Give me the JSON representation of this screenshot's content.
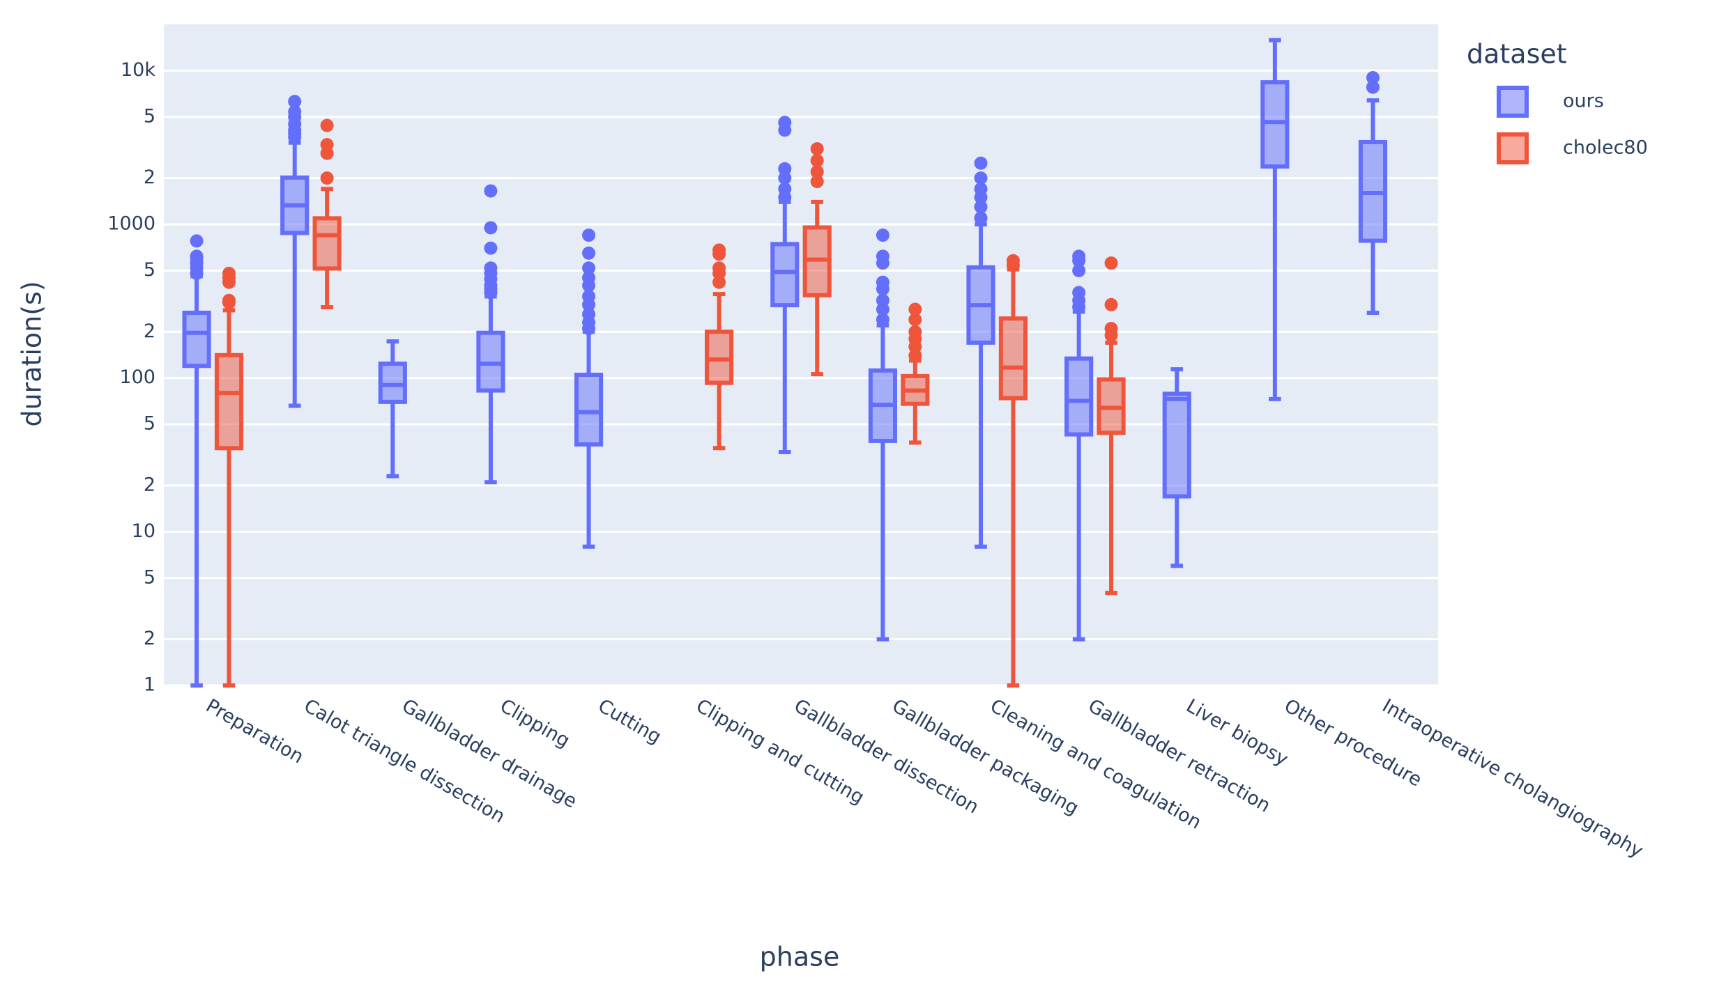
{
  "chart_data": {
    "type": "box",
    "x_label": "phase",
    "y_label": "duration(s)",
    "legend_title": "dataset",
    "legend": "top-right-outside",
    "log": true,
    "grid": true,
    "categories": [
      "Preparation",
      "Calot triangle dissection",
      "Gallbladder drainage",
      "Clipping",
      "Cutting",
      "Clipping and cutting",
      "Gallbladder dissection",
      "Gallbladder packaging",
      "Cleaning and coagulation",
      "Gallbladder retraction",
      "Liver biopsy",
      "Other procedure",
      "Intraoperative cholangiography"
    ],
    "ylim": [
      1,
      20000
    ],
    "yticks": [
      1,
      2,
      5,
      10,
      {
        "value": 20,
        "label": "2"
      },
      {
        "value": 50,
        "label": "5"
      },
      100,
      {
        "value": 200,
        "label": "2"
      },
      {
        "value": 500,
        "label": "5"
      },
      1000,
      {
        "value": 2000,
        "label": "2"
      },
      {
        "value": 5000,
        "label": "5"
      },
      {
        "value": 10000,
        "label": "10k"
      }
    ],
    "series": [
      {
        "name": "ours",
        "color": "#636efa",
        "min": [
          1,
          66,
          23,
          21,
          8,
          null,
          33,
          2,
          8,
          2,
          6,
          73,
          266
        ],
        "q1": [
          120,
          879,
          70,
          83,
          37,
          null,
          298,
          39,
          170,
          43,
          17,
          2380,
          782
        ],
        "median": [
          197,
          1330,
          90,
          124,
          60,
          null,
          490,
          67,
          298,
          71,
          73,
          4630,
          1600
        ],
        "q3": [
          266,
          2015,
          124,
          197,
          105,
          null,
          744,
          112,
          525,
          134,
          79,
          8400,
          3430
        ],
        "max": [
          460,
          3400,
          173,
          340,
          200,
          null,
          1400,
          220,
          1000,
          270,
          114,
          15800,
          6400
        ],
        "outliers": [
          [
            480,
            520,
            560,
            600,
            620,
            780
          ],
          [
            3700,
            3900,
            4100,
            4500,
            5000,
            5400,
            6300
          ],
          [],
          [
            360,
            380,
            400,
            440,
            480,
            520,
            700,
            950,
            1650
          ],
          [
            210,
            230,
            260,
            300,
            340,
            400,
            450,
            520,
            650,
            850
          ],
          [],
          [
            1500,
            1700,
            2000,
            2300,
            4100,
            4600
          ],
          [
            240,
            280,
            320,
            380,
            420,
            560,
            620,
            850
          ],
          [
            1100,
            1300,
            1500,
            1700,
            2000,
            2500
          ],
          [
            290,
            320,
            360,
            500,
            580,
            620
          ],
          [],
          [],
          [
            7800,
            9000
          ]
        ]
      },
      {
        "name": "cholec80",
        "color": "#EF553B",
        "min": [
          1,
          289,
          null,
          null,
          null,
          35,
          106,
          38,
          1,
          4,
          null,
          null,
          null
        ],
        "q1": [
          35,
          516,
          null,
          null,
          null,
          93,
          346,
          68,
          74,
          44,
          null,
          null,
          null
        ],
        "median": [
          80,
          850,
          null,
          null,
          null,
          132,
          590,
          83,
          117,
          64,
          null,
          null,
          null
        ],
        "q3": [
          141,
          1095,
          null,
          null,
          null,
          200,
          955,
          103,
          244,
          98,
          null,
          null,
          null
        ],
        "max": [
          276,
          1700,
          null,
          null,
          null,
          352,
          1400,
          130,
          510,
          170,
          null,
          null,
          null
        ],
        "outliers": [
          [
            310,
            320,
            420,
            450,
            480
          ],
          [
            2000,
            2900,
            3300,
            4400
          ],
          [],
          [],
          [],
          [
            420,
            480,
            520,
            640,
            680
          ],
          [
            1900,
            2200,
            2600,
            3100
          ],
          [
            140,
            160,
            180,
            200,
            240,
            280
          ],
          [
            540,
            580
          ],
          [
            190,
            210,
            300,
            560
          ],
          [],
          [],
          []
        ]
      }
    ]
  }
}
